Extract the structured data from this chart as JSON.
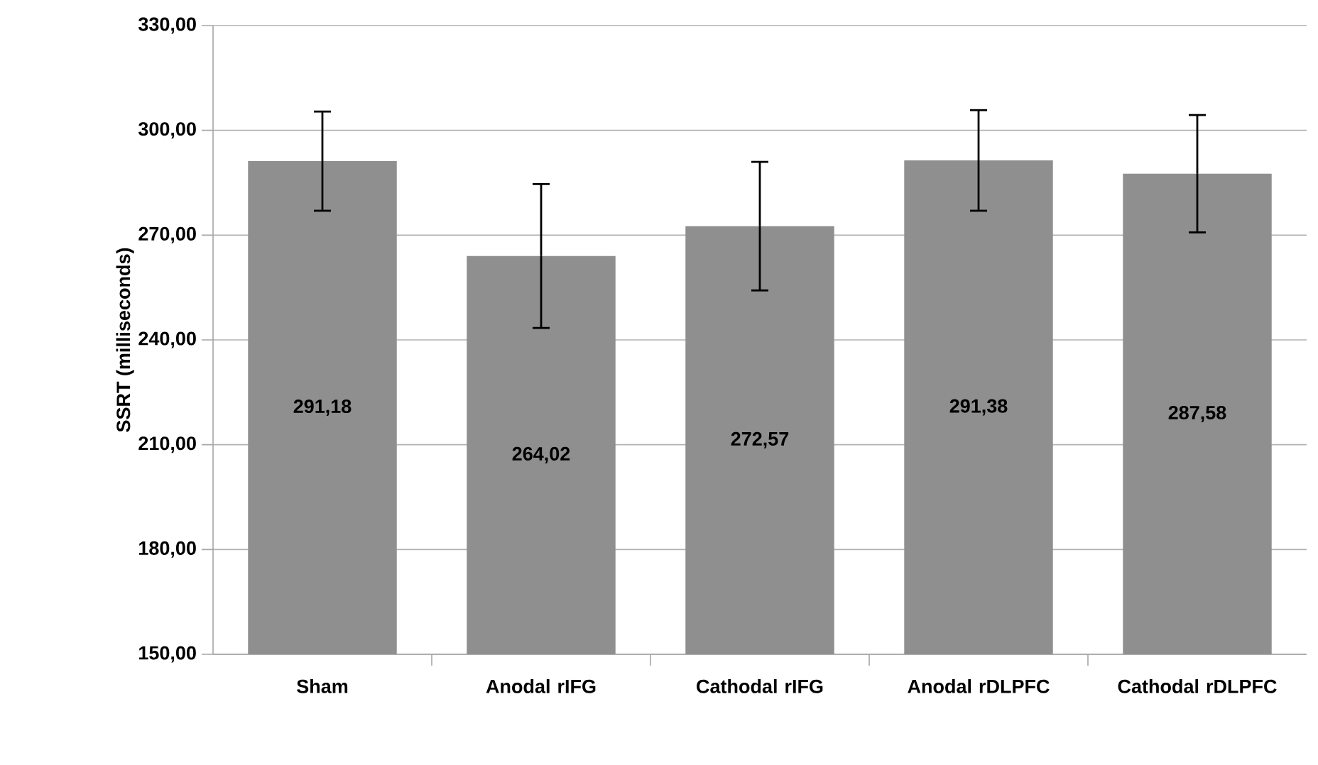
{
  "chart_data": {
    "type": "bar",
    "ylabel": "SSRT (milliseconds)",
    "categories": [
      "Sham",
      "Anodal rIFG",
      "Cathodal rIFG",
      "Anodal rDLPFC",
      "Cathodal rDLPFC"
    ],
    "values": [
      291.18,
      264.02,
      272.57,
      291.38,
      287.58
    ],
    "value_labels": [
      "291,18",
      "264,02",
      "272,57",
      "291,38",
      "287,58"
    ],
    "errors": [
      14.2,
      20.6,
      18.4,
      14.4,
      16.8
    ],
    "color": "#8f8f8f",
    "ylim": [
      150,
      330
    ],
    "yticks": [
      {
        "value": 150,
        "label": "150,00"
      },
      {
        "value": 180,
        "label": "180,00"
      },
      {
        "value": 210,
        "label": "210,00"
      },
      {
        "value": 240,
        "label": "240,00"
      },
      {
        "value": 270,
        "label": "270,00"
      },
      {
        "value": 300,
        "label": "300,00"
      },
      {
        "value": 330,
        "label": "330,00"
      }
    ],
    "grid": "y"
  }
}
